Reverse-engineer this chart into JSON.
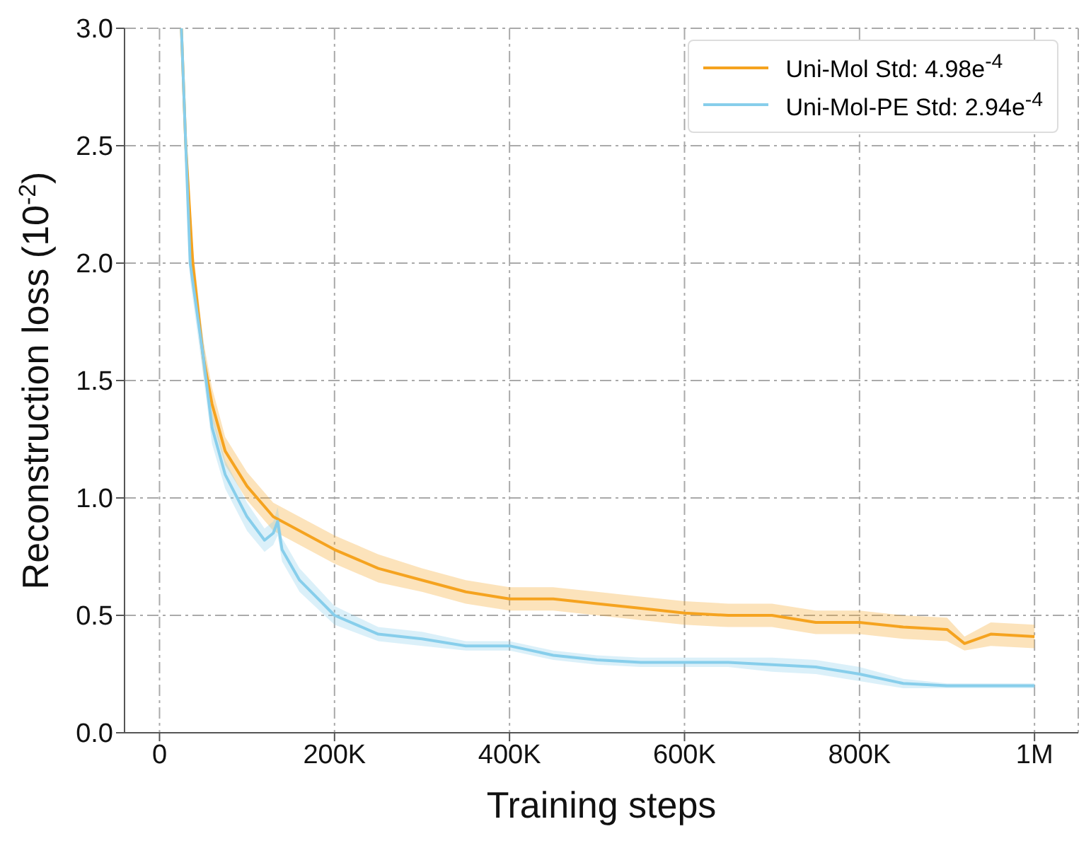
{
  "chart_data": {
    "type": "line",
    "xlabel": "Training steps",
    "ylabel": "Reconstruction loss (10$^{-2}$)",
    "xlim": [
      -40000,
      1050000
    ],
    "xticks": [
      0,
      {
        "value": 200000,
        "label": "200K"
      },
      {
        "value": 400000,
        "label": "400K"
      },
      {
        "value": 600000,
        "label": "600K"
      },
      {
        "value": 800000,
        "label": "800K"
      },
      {
        "value": 1000000,
        "label": "1M"
      }
    ],
    "ylim": [
      0,
      3
    ],
    "yticks": [
      {
        "value": 0,
        "label": "0.0"
      },
      0.5,
      {
        "value": 1,
        "label": "1.0"
      },
      1.5,
      {
        "value": 2,
        "label": "2.0"
      },
      2.5,
      {
        "value": 3,
        "label": "3.0"
      }
    ],
    "grid": true,
    "legend": "top right",
    "marker": "none",
    "line_style": "solid",
    "series": [
      {
        "name": "Uni-Mol Std: 4.98e$^{-4}$",
        "color": "#f5a31f",
        "x": [
          25000,
          30000,
          38000,
          50000,
          60000,
          75000,
          100000,
          130000,
          150000,
          200000,
          250000,
          300000,
          350000,
          400000,
          450000,
          500000,
          550000,
          600000,
          650000,
          700000,
          750000,
          800000,
          850000,
          900000,
          920000,
          950000,
          1000000
        ],
        "values": [
          3.0,
          2.5,
          2.0,
          1.6,
          1.4,
          1.2,
          1.05,
          0.92,
          0.88,
          0.78,
          0.7,
          0.65,
          0.6,
          0.57,
          0.57,
          0.55,
          0.53,
          0.51,
          0.5,
          0.5,
          0.47,
          0.47,
          0.45,
          0.44,
          0.38,
          0.42,
          0.41
        ],
        "lower": [
          2.95,
          2.42,
          1.93,
          1.53,
          1.33,
          1.14,
          0.99,
          0.86,
          0.82,
          0.72,
          0.64,
          0.6,
          0.55,
          0.52,
          0.52,
          0.5,
          0.48,
          0.46,
          0.45,
          0.45,
          0.42,
          0.42,
          0.4,
          0.39,
          0.35,
          0.37,
          0.36
        ],
        "upper": [
          3.0,
          2.58,
          2.07,
          1.67,
          1.47,
          1.26,
          1.11,
          0.98,
          0.94,
          0.84,
          0.76,
          0.7,
          0.65,
          0.62,
          0.62,
          0.6,
          0.58,
          0.56,
          0.55,
          0.55,
          0.52,
          0.52,
          0.5,
          0.49,
          0.41,
          0.47,
          0.46
        ]
      },
      {
        "name": "Uni-Mol-PE Std: 2.94e$^{-4}$",
        "color": "#87ceeb",
        "x": [
          25000,
          35000,
          50000,
          60000,
          75000,
          100000,
          120000,
          130000,
          135000,
          140000,
          160000,
          200000,
          250000,
          300000,
          350000,
          400000,
          450000,
          500000,
          550000,
          600000,
          650000,
          700000,
          750000,
          800000,
          850000,
          900000,
          1000000
        ],
        "values": [
          3.0,
          2.0,
          1.6,
          1.3,
          1.1,
          0.92,
          0.82,
          0.85,
          0.9,
          0.78,
          0.65,
          0.5,
          0.42,
          0.4,
          0.37,
          0.37,
          0.33,
          0.31,
          0.3,
          0.3,
          0.3,
          0.29,
          0.28,
          0.25,
          0.21,
          0.2,
          0.2
        ],
        "lower": [
          2.95,
          1.93,
          1.52,
          1.23,
          1.04,
          0.86,
          0.77,
          0.8,
          0.84,
          0.73,
          0.6,
          0.46,
          0.39,
          0.37,
          0.35,
          0.35,
          0.31,
          0.29,
          0.28,
          0.28,
          0.28,
          0.26,
          0.25,
          0.22,
          0.19,
          0.19,
          0.19
        ],
        "upper": [
          3.0,
          2.07,
          1.68,
          1.37,
          1.16,
          0.98,
          0.87,
          0.9,
          0.96,
          0.83,
          0.7,
          0.54,
          0.45,
          0.43,
          0.39,
          0.39,
          0.35,
          0.33,
          0.32,
          0.32,
          0.32,
          0.32,
          0.31,
          0.28,
          0.23,
          0.21,
          0.21
        ]
      }
    ]
  }
}
